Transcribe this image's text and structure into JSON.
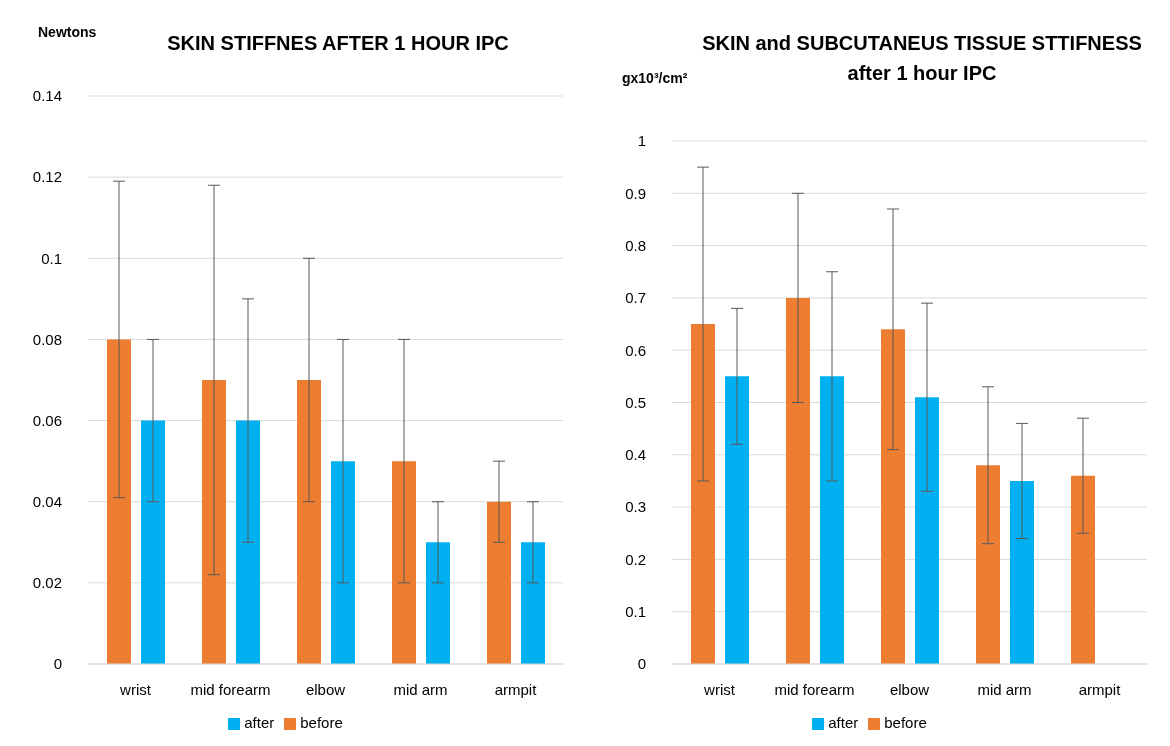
{
  "chart_data": [
    {
      "type": "bar",
      "title": "SKIN STIFFNES AFTER 1 HOUR IPC",
      "ylabel": "Newtons",
      "categories": [
        "wrist",
        "mid forearm",
        "elbow",
        "mid arm",
        "armpit"
      ],
      "series": [
        {
          "name": "before",
          "color": "#ed7d31",
          "values": [
            0.08,
            0.07,
            0.07,
            0.05,
            0.04
          ],
          "errors": [
            0.039,
            0.048,
            0.03,
            0.03,
            0.01
          ]
        },
        {
          "name": "after",
          "color": "#00b0f0",
          "values": [
            0.06,
            0.06,
            0.05,
            0.03,
            0.03
          ],
          "errors": [
            0.02,
            0.03,
            0.03,
            0.01,
            0.01
          ]
        }
      ],
      "ylim": [
        0,
        0.14
      ],
      "yticks": [
        0,
        0.02,
        0.04,
        0.06,
        0.08,
        0.1,
        0.12,
        0.14
      ],
      "grid": "y",
      "legend": "bottom"
    },
    {
      "type": "bar",
      "title": "SKIN and SUBCUTANEUS TISSUE STTIFNESS after 1 hour IPC",
      "ylabel": "gx10³/cm²",
      "categories": [
        "wrist",
        "mid forearm",
        "elbow",
        "mid arm",
        "armpit"
      ],
      "series": [
        {
          "name": "before",
          "color": "#ed7d31",
          "values": [
            0.65,
            0.7,
            0.64,
            0.38,
            0.36
          ],
          "errors": [
            0.3,
            0.2,
            0.23,
            0.15,
            0.11
          ]
        },
        {
          "name": "after",
          "color": "#00b0f0",
          "values": [
            0.55,
            0.55,
            0.51,
            0.35,
            null
          ],
          "errors": [
            0.13,
            0.2,
            0.18,
            0.11,
            null
          ]
        }
      ],
      "ylim": [
        0,
        1
      ],
      "yticks": [
        0,
        0.1,
        0.2,
        0.3,
        0.4,
        0.5,
        0.6,
        0.7,
        0.8,
        0.9,
        1
      ],
      "grid": "y",
      "legend": "bottom"
    }
  ]
}
